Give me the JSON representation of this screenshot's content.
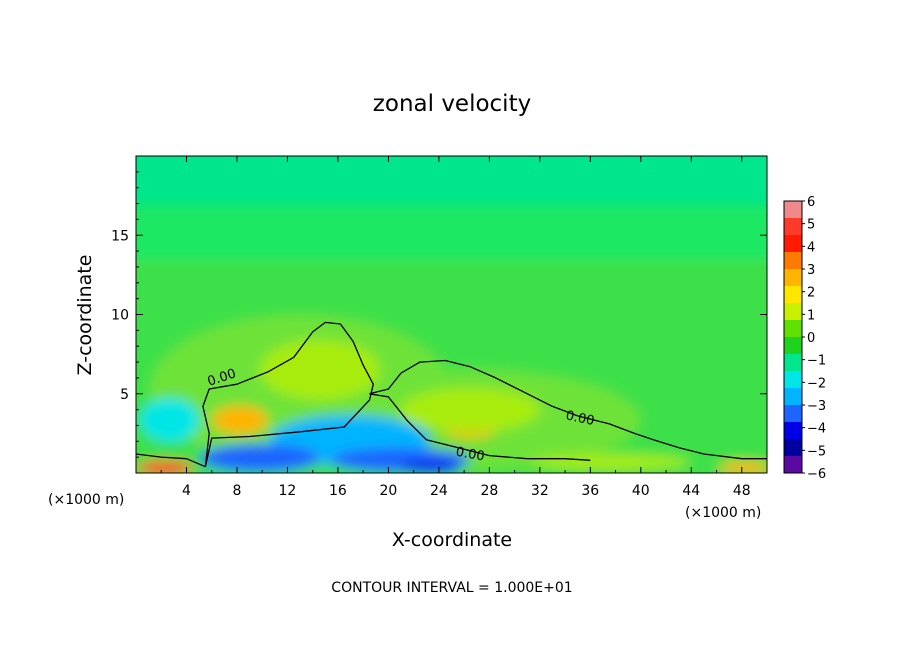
{
  "chart_data": {
    "type": "heatmap",
    "title": "zonal velocity",
    "xlabel": "X-coordinate",
    "ylabel": "Z-coordinate",
    "x_unit_left": "(×1000 m)",
    "x_unit_right": "(×1000 m)",
    "xlim": [
      0,
      50
    ],
    "ylim": [
      0,
      20
    ],
    "x_ticks": [
      4,
      8,
      12,
      16,
      20,
      24,
      28,
      32,
      36,
      40,
      44,
      48
    ],
    "y_ticks": [
      5,
      10,
      15
    ],
    "colorbar": {
      "ticks": [
        6,
        5,
        4,
        3,
        2,
        1,
        0,
        -1,
        -2,
        -3,
        -4,
        -5,
        -6
      ],
      "tick_labels": [
        "6",
        "5",
        "4",
        "3",
        "2",
        "1",
        "0",
        "−1",
        "−2",
        "−3",
        "−4",
        "−5",
        "−6"
      ],
      "colors": [
        "#f08a8a",
        "#ff3a2a",
        "#ff1a00",
        "#ff7a00",
        "#ffb400",
        "#ffe600",
        "#c8f000",
        "#5ee000",
        "#1ed21e",
        "#00e68c",
        "#00e6e6",
        "#00b4ff",
        "#1e64ff",
        "#0000e6",
        "#0000a0",
        "#5a0aa0"
      ]
    },
    "contour_level_label": "0.00",
    "contour_interval_text": "CONTOUR INTERVAL = 1.000E+01",
    "regions": [
      {
        "name": "upper background",
        "x": [
          0,
          50
        ],
        "z": [
          10,
          20
        ],
        "value": -1
      },
      {
        "name": "left lobe max",
        "x": 8,
        "z": 3.3,
        "value": 3
      },
      {
        "name": "right lobe max",
        "x": 27,
        "z": 3.0,
        "value": 3
      },
      {
        "name": "near-surface min",
        "x": 10,
        "z": 0.8,
        "value": -4
      },
      {
        "name": "near-surface min",
        "x": 23,
        "z": 0.5,
        "value": -4
      },
      {
        "name": "surface max left",
        "x": 2,
        "z": 0.5,
        "value": 4
      },
      {
        "name": "surface max right",
        "x": 48,
        "z": 0.5,
        "value": 3
      }
    ],
    "contour_zero_left": [
      [
        5.5,
        0.4
      ],
      [
        5.8,
        2.5
      ],
      [
        5.3,
        4.2
      ],
      [
        5.8,
        5.3
      ],
      [
        8,
        5.6
      ],
      [
        10.5,
        6.4
      ],
      [
        12.5,
        7.3
      ],
      [
        14,
        8.9
      ],
      [
        15,
        9.5
      ],
      [
        16.2,
        9.4
      ],
      [
        17.2,
        8.3
      ],
      [
        18,
        6.8
      ],
      [
        18.8,
        5.6
      ],
      [
        18.5,
        4.6
      ],
      [
        16.5,
        2.9
      ],
      [
        13,
        2.6
      ],
      [
        9,
        2.3
      ],
      [
        6,
        2.2
      ],
      [
        5.5,
        0.4
      ]
    ],
    "contour_zero_right": [
      [
        18.5,
        5.0
      ],
      [
        20,
        5.3
      ],
      [
        21,
        6.3
      ],
      [
        22.5,
        7
      ],
      [
        24.5,
        7.1
      ],
      [
        26.5,
        6.7
      ],
      [
        28.5,
        6
      ],
      [
        30.5,
        5.2
      ],
      [
        33,
        4.2
      ],
      [
        35,
        3.6
      ],
      [
        37.5,
        3.1
      ],
      [
        39.5,
        2.5
      ],
      [
        41,
        2.1
      ],
      [
        43,
        1.6
      ],
      [
        45,
        1.2
      ],
      [
        48,
        0.9
      ],
      [
        50,
        0.9
      ]
    ],
    "contour_zero_lower": [
      [
        18.5,
        5.0
      ],
      [
        20,
        4.8
      ],
      [
        21.5,
        3.3
      ],
      [
        23,
        2.1
      ],
      [
        25.5,
        1.6
      ],
      [
        28,
        1.1
      ],
      [
        31,
        0.9
      ],
      [
        34,
        0.9
      ],
      [
        36,
        0.8
      ]
    ],
    "contour_zero_surface": [
      [
        0,
        1.2
      ],
      [
        2,
        1.0
      ],
      [
        4,
        0.9
      ],
      [
        5.5,
        0.4
      ]
    ]
  }
}
